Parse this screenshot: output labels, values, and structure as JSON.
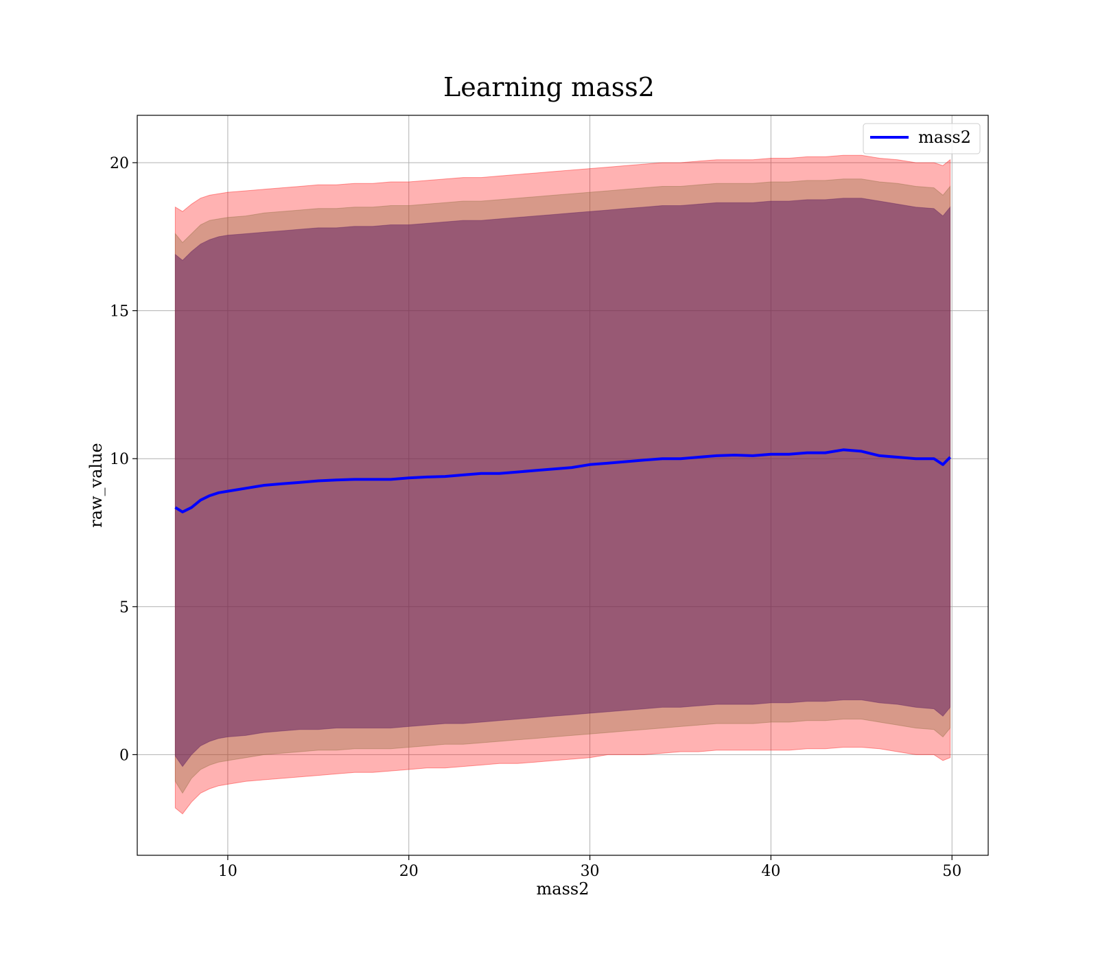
{
  "chart_data": {
    "type": "line",
    "title": "Learning mass2",
    "xlabel": "mass2",
    "ylabel": "raw_value",
    "xlim": [
      5,
      52
    ],
    "ylim": [
      -3.4,
      21.6
    ],
    "xticks": [
      10,
      20,
      30,
      40,
      50
    ],
    "yticks": [
      0,
      5,
      10,
      15,
      20
    ],
    "grid": true,
    "legend_position": "upper right",
    "colors": {
      "line": "#0000ff",
      "outer_band": "#ff0000",
      "middle_band": "#8b6b3d",
      "inner_band": "#5a1a5f"
    },
    "x": [
      7.1,
      7.5,
      8,
      8.5,
      9,
      9.5,
      10,
      11,
      12,
      13,
      14,
      15,
      16,
      17,
      18,
      19,
      20,
      21,
      22,
      23,
      24,
      25,
      26,
      27,
      28,
      29,
      30,
      31,
      32,
      33,
      34,
      35,
      36,
      37,
      38,
      39,
      40,
      41,
      42,
      43,
      44,
      45,
      46,
      47,
      48,
      49,
      49.5,
      49.9
    ],
    "series": [
      {
        "name": "mass2",
        "values": [
          8.35,
          8.2,
          8.35,
          8.6,
          8.75,
          8.85,
          8.9,
          9.0,
          9.1,
          9.15,
          9.2,
          9.25,
          9.28,
          9.3,
          9.3,
          9.3,
          9.35,
          9.38,
          9.4,
          9.45,
          9.5,
          9.5,
          9.55,
          9.6,
          9.65,
          9.7,
          9.8,
          9.85,
          9.9,
          9.95,
          10.0,
          10.0,
          10.05,
          10.1,
          10.12,
          10.1,
          10.15,
          10.15,
          10.2,
          10.2,
          10.3,
          10.25,
          10.1,
          10.05,
          10.0,
          10.0,
          9.8,
          10.05
        ]
      }
    ],
    "bands": [
      {
        "opacity": 0.3,
        "lower": [
          -1.8,
          -2.0,
          -1.6,
          -1.3,
          -1.15,
          -1.05,
          -1.0,
          -0.9,
          -0.85,
          -0.8,
          -0.75,
          -0.7,
          -0.65,
          -0.6,
          -0.6,
          -0.55,
          -0.5,
          -0.45,
          -0.45,
          -0.4,
          -0.35,
          -0.3,
          -0.3,
          -0.25,
          -0.2,
          -0.15,
          -0.1,
          0.0,
          0.0,
          0.0,
          0.05,
          0.1,
          0.1,
          0.15,
          0.15,
          0.15,
          0.15,
          0.15,
          0.2,
          0.2,
          0.25,
          0.25,
          0.2,
          0.1,
          0.0,
          0.0,
          -0.2,
          -0.1
        ],
        "upper": [
          18.5,
          18.35,
          18.6,
          18.8,
          18.9,
          18.95,
          19.0,
          19.05,
          19.1,
          19.15,
          19.2,
          19.25,
          19.25,
          19.3,
          19.3,
          19.35,
          19.35,
          19.4,
          19.45,
          19.5,
          19.5,
          19.55,
          19.6,
          19.65,
          19.7,
          19.75,
          19.8,
          19.85,
          19.9,
          19.95,
          20.0,
          20.0,
          20.05,
          20.1,
          20.1,
          20.1,
          20.15,
          20.15,
          20.2,
          20.2,
          20.25,
          20.25,
          20.15,
          20.1,
          20.0,
          20.0,
          19.9,
          20.1
        ]
      },
      {
        "opacity": 0.35,
        "lower": [
          -0.9,
          -1.3,
          -0.8,
          -0.5,
          -0.35,
          -0.25,
          -0.2,
          -0.1,
          0.0,
          0.05,
          0.1,
          0.15,
          0.15,
          0.2,
          0.2,
          0.2,
          0.25,
          0.3,
          0.35,
          0.35,
          0.4,
          0.45,
          0.5,
          0.55,
          0.6,
          0.65,
          0.7,
          0.75,
          0.8,
          0.85,
          0.9,
          0.95,
          1.0,
          1.05,
          1.05,
          1.05,
          1.1,
          1.1,
          1.15,
          1.15,
          1.2,
          1.2,
          1.1,
          1.0,
          0.9,
          0.85,
          0.6,
          0.9
        ],
        "upper": [
          17.6,
          17.3,
          17.6,
          17.9,
          18.05,
          18.1,
          18.15,
          18.2,
          18.3,
          18.35,
          18.4,
          18.45,
          18.45,
          18.5,
          18.5,
          18.55,
          18.55,
          18.6,
          18.65,
          18.7,
          18.7,
          18.75,
          18.8,
          18.85,
          18.9,
          18.95,
          19.0,
          19.05,
          19.1,
          19.15,
          19.2,
          19.2,
          19.25,
          19.3,
          19.3,
          19.3,
          19.35,
          19.35,
          19.4,
          19.4,
          19.45,
          19.45,
          19.35,
          19.3,
          19.2,
          19.15,
          18.9,
          19.2
        ]
      },
      {
        "opacity": 0.5,
        "lower": [
          -0.05,
          -0.4,
          0.0,
          0.3,
          0.45,
          0.55,
          0.6,
          0.65,
          0.75,
          0.8,
          0.85,
          0.85,
          0.9,
          0.9,
          0.9,
          0.9,
          0.95,
          1.0,
          1.05,
          1.05,
          1.1,
          1.15,
          1.2,
          1.25,
          1.3,
          1.35,
          1.4,
          1.45,
          1.5,
          1.55,
          1.6,
          1.6,
          1.65,
          1.7,
          1.7,
          1.7,
          1.75,
          1.75,
          1.8,
          1.8,
          1.85,
          1.85,
          1.75,
          1.7,
          1.6,
          1.55,
          1.3,
          1.6
        ],
        "upper": [
          16.9,
          16.7,
          17.0,
          17.25,
          17.4,
          17.5,
          17.55,
          17.6,
          17.65,
          17.7,
          17.75,
          17.8,
          17.8,
          17.85,
          17.85,
          17.9,
          17.9,
          17.95,
          18.0,
          18.05,
          18.05,
          18.1,
          18.15,
          18.2,
          18.25,
          18.3,
          18.35,
          18.4,
          18.45,
          18.5,
          18.55,
          18.55,
          18.6,
          18.65,
          18.65,
          18.65,
          18.7,
          18.7,
          18.75,
          18.75,
          18.8,
          18.8,
          18.7,
          18.6,
          18.5,
          18.45,
          18.2,
          18.5
        ]
      }
    ]
  }
}
